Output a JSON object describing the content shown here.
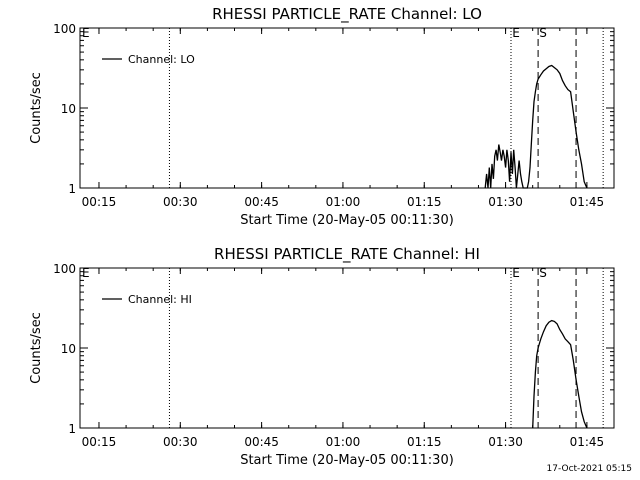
{
  "stamp": "17-Oct-2021 05:15",
  "markers": [
    {
      "label": "E",
      "time": "01:31"
    },
    {
      "label": "S",
      "time": "01:36"
    }
  ],
  "chart_data": [
    {
      "type": "line",
      "title": "RHESSI PARTICLE_RATE Channel: LO",
      "xlabel": "Start Time (20-May-05 00:11:30)",
      "ylabel": "Counts/sec",
      "yscale": "log",
      "ylim": [
        1,
        100
      ],
      "xlim": [
        "00:11:30",
        "01:50:00"
      ],
      "xticks": [
        "00:15",
        "00:30",
        "00:45",
        "01:00",
        "01:15",
        "01:30",
        "01:45"
      ],
      "yticks": [
        "1",
        "10",
        "100"
      ],
      "legend": {
        "position": "top-left",
        "entries": [
          "Channel: LO"
        ]
      },
      "dotted_lines": [
        "00:28",
        "01:31",
        "01:48"
      ],
      "dashed_lines": [
        "01:36",
        "01:43"
      ],
      "series": [
        {
          "name": "Channel: LO",
          "x": [
            "01:26:15",
            "01:26:30",
            "01:26:45",
            "01:27:00",
            "01:27:15",
            "01:27:30",
            "01:27:45",
            "01:28:00",
            "01:28:15",
            "01:28:30",
            "01:28:45",
            "01:29:00",
            "01:29:15",
            "01:29:30",
            "01:29:45",
            "01:30:00",
            "01:30:15",
            "01:30:30",
            "01:30:45",
            "01:31:00",
            "01:31:15",
            "01:31:30",
            "01:31:45",
            "01:32:00",
            "01:32:15",
            "01:32:30",
            "01:32:45",
            "01:33:00",
            "01:33:15",
            "01:33:30",
            "01:33:45",
            "01:34:00",
            "01:34:15",
            "01:34:30",
            "01:34:45",
            "01:35:00",
            "01:35:15",
            "01:35:30",
            "01:35:45",
            "01:36:00",
            "01:36:30",
            "01:37:00",
            "01:37:30",
            "01:38:00",
            "01:38:30",
            "01:39:00",
            "01:39:30",
            "01:40:00",
            "01:40:30",
            "01:41:00",
            "01:41:30",
            "01:42:00",
            "01:42:30",
            "01:43:00",
            "01:43:30",
            "01:44:00",
            "01:44:30",
            "01:45:00"
          ],
          "y": [
            1,
            1.5,
            1,
            1.8,
            1,
            2,
            1.3,
            2.5,
            3,
            2.2,
            3.5,
            2.8,
            2.2,
            3,
            2.5,
            1.8,
            3,
            2.2,
            1.2,
            2.8,
            1.5,
            3,
            1.8,
            1,
            1.5,
            2.2,
            1.5,
            1.2,
            1,
            1,
            1,
            1,
            1.2,
            1.8,
            3.5,
            7,
            12,
            16,
            20,
            23,
            26,
            29,
            31,
            33,
            34,
            32,
            30,
            27,
            22,
            19,
            17,
            16,
            9,
            5,
            3,
            2,
            1.2,
            1
          ]
        }
      ]
    },
    {
      "type": "line",
      "title": "RHESSI PARTICLE_RATE Channel: HI",
      "xlabel": "Start Time (20-May-05 00:11:30)",
      "ylabel": "Counts/sec",
      "yscale": "log",
      "ylim": [
        1,
        100
      ],
      "xlim": [
        "00:11:30",
        "01:50:00"
      ],
      "xticks": [
        "00:15",
        "00:30",
        "00:45",
        "01:00",
        "01:15",
        "01:30",
        "01:45"
      ],
      "yticks": [
        "1",
        "10",
        "100"
      ],
      "legend": {
        "position": "top-left",
        "entries": [
          "Channel: HI"
        ]
      },
      "dotted_lines": [
        "00:28",
        "01:31",
        "01:48"
      ],
      "dashed_lines": [
        "01:36",
        "01:43"
      ],
      "series": [
        {
          "name": "Channel: HI",
          "x": [
            "01:35:00",
            "01:35:15",
            "01:35:30",
            "01:35:45",
            "01:36:00",
            "01:36:30",
            "01:37:00",
            "01:37:30",
            "01:38:00",
            "01:38:30",
            "01:39:00",
            "01:39:30",
            "01:40:00",
            "01:40:30",
            "01:41:00",
            "01:41:30",
            "01:42:00",
            "01:42:30",
            "01:43:00",
            "01:43:30",
            "01:44:00",
            "01:44:30",
            "01:45:00"
          ],
          "y": [
            1,
            2.5,
            5,
            8,
            10,
            13,
            16,
            19,
            21,
            22,
            21.5,
            20,
            17,
            15,
            13,
            12,
            11,
            7,
            4,
            2.5,
            1.6,
            1.2,
            1
          ]
        }
      ]
    }
  ]
}
